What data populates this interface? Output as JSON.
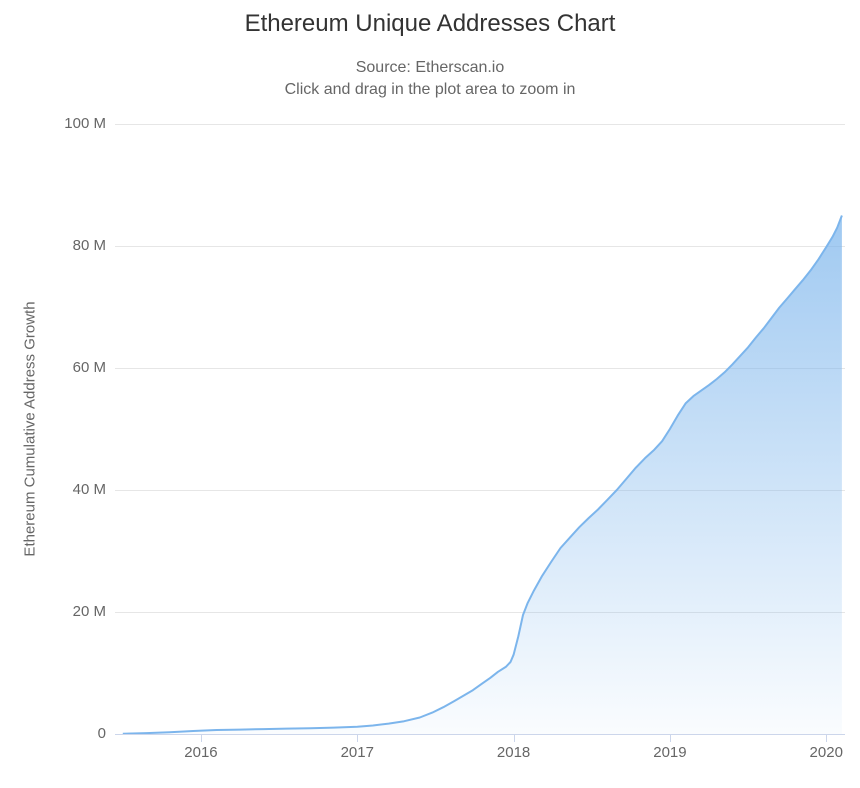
{
  "chart_data": {
    "type": "area",
    "title": "Ethereum Unique Addresses Chart",
    "subtitle_source": "Source: Etherscan.io",
    "subtitle_hint": "Click and drag in the plot area to zoom in",
    "xlabel": "",
    "ylabel": "Ethereum Cumulative Address Growth",
    "y_unit": "millions of addresses",
    "x_range": [
      2015.45,
      2020.12
    ],
    "ylim": [
      0,
      100
    ],
    "grid": "horizontal",
    "legend_position": "none",
    "y_ticks": [
      {
        "value": 0,
        "label": "0"
      },
      {
        "value": 20,
        "label": "20 M"
      },
      {
        "value": 40,
        "label": "40 M"
      },
      {
        "value": 60,
        "label": "60 M"
      },
      {
        "value": 80,
        "label": "80 M"
      },
      {
        "value": 100,
        "label": "100 M"
      }
    ],
    "x_ticks": [
      {
        "value": 2016,
        "label": "2016"
      },
      {
        "value": 2017,
        "label": "2017"
      },
      {
        "value": 2018,
        "label": "2018"
      },
      {
        "value": 2019,
        "label": "2019"
      },
      {
        "value": 2020,
        "label": "2020"
      }
    ],
    "series": [
      {
        "name": "Ethereum Cumulative Address Growth",
        "points": [
          [
            2015.5,
            0.05
          ],
          [
            2015.65,
            0.15
          ],
          [
            2015.8,
            0.3
          ],
          [
            2015.95,
            0.5
          ],
          [
            2016.1,
            0.65
          ],
          [
            2016.25,
            0.72
          ],
          [
            2016.4,
            0.8
          ],
          [
            2016.55,
            0.88
          ],
          [
            2016.7,
            0.95
          ],
          [
            2016.85,
            1.05
          ],
          [
            2017.0,
            1.2
          ],
          [
            2017.1,
            1.4
          ],
          [
            2017.2,
            1.7
          ],
          [
            2017.3,
            2.1
          ],
          [
            2017.4,
            2.7
          ],
          [
            2017.48,
            3.5
          ],
          [
            2017.55,
            4.4
          ],
          [
            2017.62,
            5.4
          ],
          [
            2017.68,
            6.3
          ],
          [
            2017.74,
            7.2
          ],
          [
            2017.8,
            8.3
          ],
          [
            2017.85,
            9.2
          ],
          [
            2017.9,
            10.2
          ],
          [
            2017.95,
            11.0
          ],
          [
            2017.98,
            11.8
          ],
          [
            2018.0,
            13.0
          ],
          [
            2018.03,
            16.0
          ],
          [
            2018.06,
            19.5
          ],
          [
            2018.09,
            21.5
          ],
          [
            2018.13,
            23.5
          ],
          [
            2018.18,
            25.8
          ],
          [
            2018.24,
            28.2
          ],
          [
            2018.3,
            30.5
          ],
          [
            2018.36,
            32.2
          ],
          [
            2018.42,
            33.9
          ],
          [
            2018.48,
            35.4
          ],
          [
            2018.54,
            36.8
          ],
          [
            2018.6,
            38.4
          ],
          [
            2018.66,
            40.0
          ],
          [
            2018.72,
            41.8
          ],
          [
            2018.78,
            43.6
          ],
          [
            2018.84,
            45.2
          ],
          [
            2018.9,
            46.6
          ],
          [
            2018.95,
            48.0
          ],
          [
            2019.0,
            50.0
          ],
          [
            2019.05,
            52.2
          ],
          [
            2019.1,
            54.2
          ],
          [
            2019.15,
            55.4
          ],
          [
            2019.2,
            56.3
          ],
          [
            2019.25,
            57.2
          ],
          [
            2019.3,
            58.2
          ],
          [
            2019.35,
            59.3
          ],
          [
            2019.4,
            60.6
          ],
          [
            2019.45,
            62.0
          ],
          [
            2019.5,
            63.4
          ],
          [
            2019.55,
            65.0
          ],
          [
            2019.6,
            66.5
          ],
          [
            2019.65,
            68.2
          ],
          [
            2019.7,
            69.9
          ],
          [
            2019.75,
            71.4
          ],
          [
            2019.8,
            72.9
          ],
          [
            2019.85,
            74.4
          ],
          [
            2019.9,
            76.0
          ],
          [
            2019.95,
            77.8
          ],
          [
            2020.0,
            79.8
          ],
          [
            2020.04,
            81.5
          ],
          [
            2020.07,
            83.0
          ],
          [
            2020.1,
            85.0
          ]
        ]
      }
    ],
    "colors": {
      "line": "#7cb5ec",
      "fill": "#7cb5ec",
      "grid": "#e6e6e6",
      "axis": "#ccd6eb",
      "title": "#333333",
      "subtitle": "#666666",
      "tick_label": "#666666",
      "background": "#ffffff"
    }
  }
}
